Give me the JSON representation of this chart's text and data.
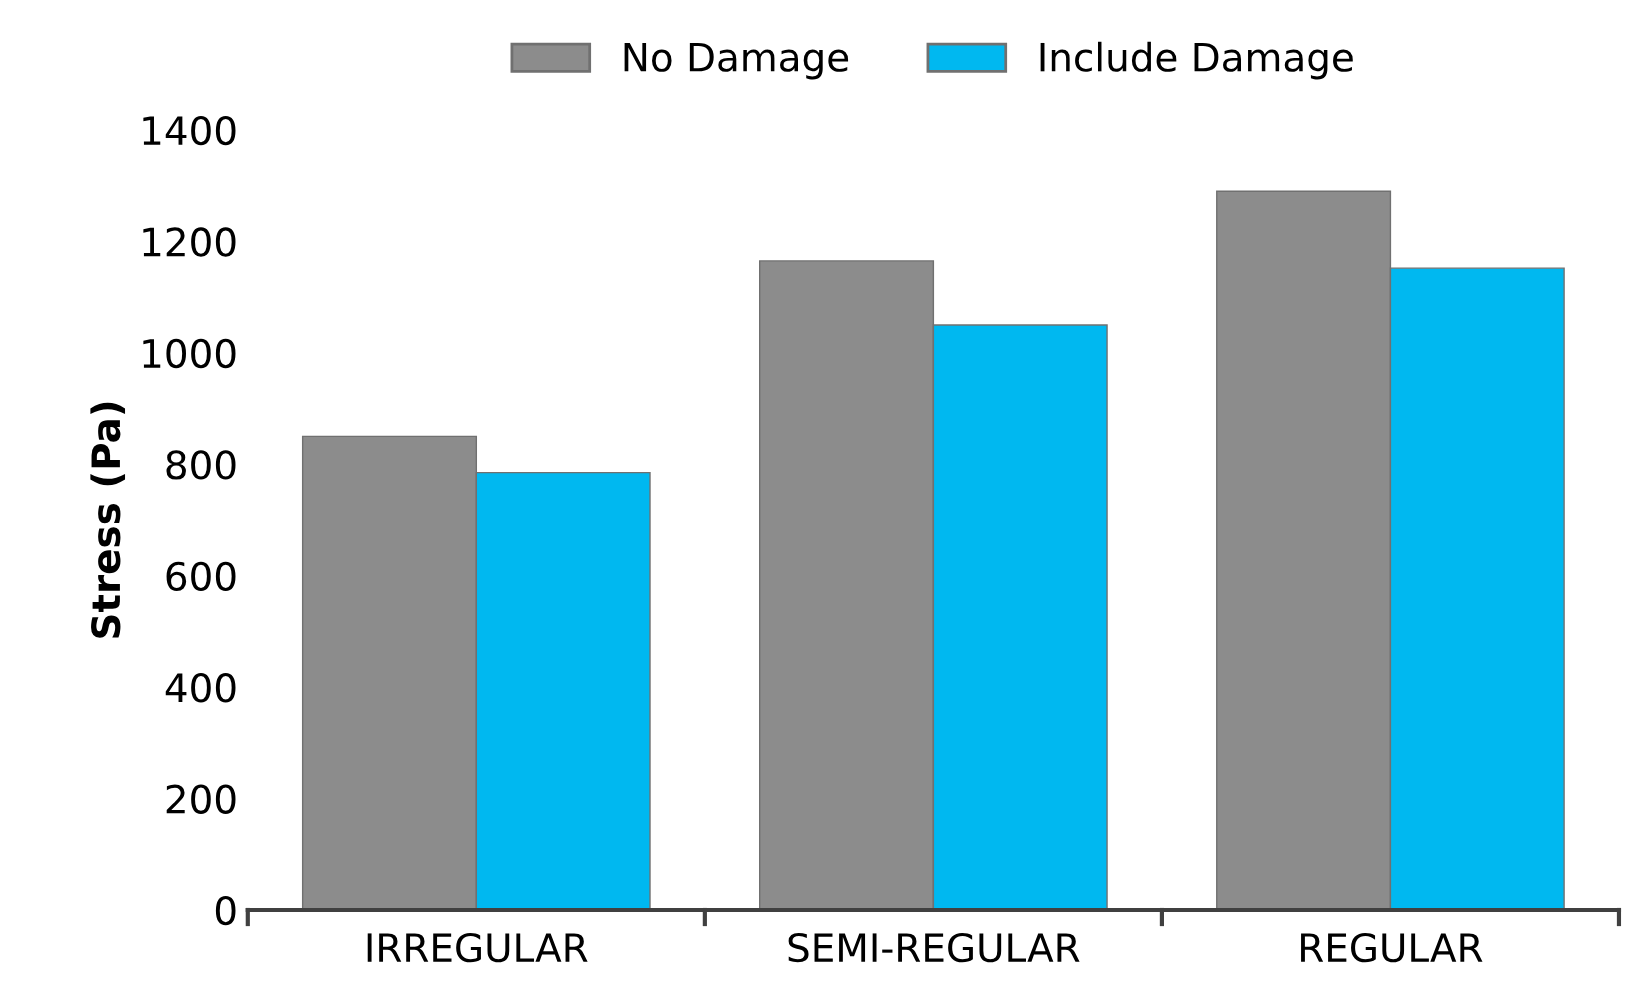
{
  "chart_data": {
    "type": "bar",
    "ylabel": "Stress (Pa)",
    "categories": [
      "IRREGULAR",
      "SEMI-REGULAR",
      "REGULAR"
    ],
    "series": [
      {
        "name": "No Damage",
        "color": "#8c8c8c",
        "values": [
          850,
          1165,
          1290
        ]
      },
      {
        "name": "Include Damage",
        "color": "#00b8f0",
        "values": [
          785,
          1050,
          1152
        ]
      }
    ],
    "ylim": [
      0,
      1400
    ],
    "yticks": [
      0,
      200,
      400,
      600,
      800,
      1000,
      1200,
      1400
    ],
    "grid": false,
    "legend": "top"
  }
}
